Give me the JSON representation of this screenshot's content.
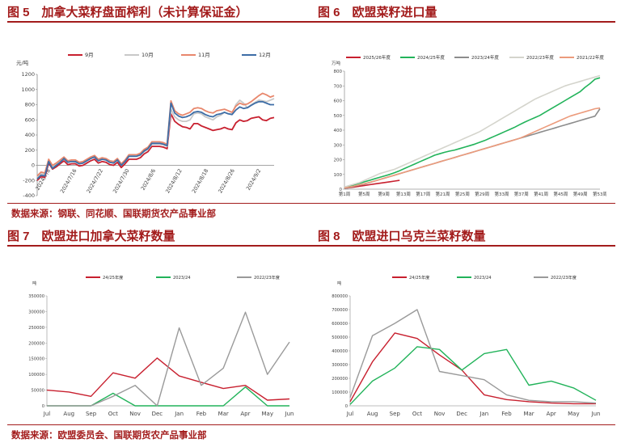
{
  "figures": {
    "fig5": {
      "title": "图 5　加拿大菜籽盘面榨利（未计算保证金）"
    },
    "fig6": {
      "title": "图 6　欧盟菜籽进口量"
    },
    "fig7": {
      "title": "图 7　欧盟进口加拿大菜籽数量"
    },
    "fig8": {
      "title": "图 8　欧盟进口乌克兰菜籽数量"
    }
  },
  "sources": {
    "top": "数据来源：钢联、同花顺、国联期货农产品事业部",
    "bottom": "数据来源：欧盟委员会、国联期货农产品事业部"
  },
  "chart_data": [
    {
      "id": "fig5",
      "type": "line",
      "ylabel": "元/吨",
      "ylim": [
        -400,
        1200
      ],
      "yticks": [
        "1200",
        "1000",
        "800",
        "600",
        "400",
        "200",
        "0",
        "-200",
        "-400"
      ],
      "ytick_values": [
        1200,
        1000,
        800,
        600,
        400,
        200,
        0,
        -200,
        -400
      ],
      "xticks": [
        "2024/7/8",
        "2024/7/16",
        "2024/7/22",
        "2024/7/30",
        "2024/8/6",
        "2024/8/12",
        "2024/8/18",
        "2024/8/26",
        "2024/9/2"
      ],
      "n_points": 63,
      "legend_position": "top",
      "series": [
        {
          "name": "9月",
          "color": "#c8202f",
          "values": [
            -200,
            -150,
            -160,
            30,
            -50,
            -20,
            20,
            60,
            10,
            20,
            20,
            -10,
            0,
            30,
            60,
            80,
            30,
            50,
            40,
            10,
            0,
            40,
            -30,
            20,
            80,
            80,
            80,
            100,
            150,
            180,
            250,
            250,
            250,
            240,
            220,
            680,
            580,
            540,
            510,
            500,
            480,
            550,
            550,
            520,
            500,
            480,
            460,
            470,
            480,
            500,
            480,
            470,
            560,
            600,
            580,
            590,
            620,
            630,
            640,
            600,
            590,
            620,
            630
          ]
        },
        {
          "name": "10月",
          "color": "#c8c8c8",
          "values": [
            -160,
            -110,
            -120,
            60,
            -20,
            10,
            50,
            80,
            40,
            50,
            40,
            20,
            30,
            60,
            90,
            110,
            60,
            80,
            70,
            40,
            30,
            70,
            0,
            50,
            120,
            120,
            120,
            130,
            180,
            210,
            280,
            280,
            280,
            270,
            250,
            740,
            640,
            600,
            580,
            580,
            600,
            680,
            690,
            680,
            640,
            620,
            600,
            640,
            660,
            700,
            680,
            680,
            800,
            860,
            820,
            760,
            800,
            830,
            860,
            850,
            840,
            860,
            880
          ]
        },
        {
          "name": "11月",
          "color": "#e8876c",
          "values": [
            -140,
            -90,
            -100,
            80,
            0,
            30,
            70,
            110,
            60,
            70,
            70,
            40,
            50,
            80,
            110,
            130,
            80,
            100,
            90,
            60,
            50,
            90,
            20,
            70,
            140,
            140,
            140,
            160,
            210,
            240,
            310,
            310,
            310,
            300,
            280,
            850,
            720,
            680,
            660,
            680,
            700,
            750,
            760,
            750,
            720,
            700,
            690,
            720,
            730,
            740,
            720,
            700,
            780,
            820,
            800,
            810,
            840,
            880,
            920,
            950,
            930,
            900,
            920
          ]
        },
        {
          "name": "12月",
          "color": "#3d6da6",
          "values": [
            -180,
            -130,
            -140,
            50,
            -40,
            0,
            40,
            90,
            40,
            50,
            50,
            20,
            30,
            60,
            90,
            110,
            60,
            80,
            70,
            40,
            30,
            70,
            0,
            50,
            120,
            120,
            120,
            140,
            190,
            220,
            290,
            290,
            290,
            280,
            260,
            820,
            690,
            650,
            630,
            640,
            660,
            700,
            710,
            700,
            670,
            650,
            640,
            670,
            680,
            700,
            680,
            670,
            730,
            770,
            750,
            760,
            790,
            820,
            840,
            840,
            820,
            800,
            800
          ]
        }
      ]
    },
    {
      "id": "fig6",
      "type": "line",
      "ylabel": "万吨",
      "ylim": [
        0,
        800
      ],
      "yticks": [
        "800",
        "700",
        "600",
        "500",
        "400",
        "300",
        "200",
        "100",
        "0"
      ],
      "ytick_values": [
        800,
        700,
        600,
        500,
        400,
        300,
        200,
        100,
        0
      ],
      "xticks": [
        "第1周",
        "第5周",
        "第9周",
        "第13周",
        "第17周",
        "第21周",
        "第25周",
        "第29周",
        "第33周",
        "第37周",
        "第41周",
        "第45周",
        "第49周",
        "第53周"
      ],
      "n_points": 52,
      "legend_position": "top",
      "series": [
        {
          "name": "2025/26年度",
          "color": "#c8202f",
          "values": [
            5,
            10,
            15,
            20,
            25,
            30,
            35,
            40,
            45,
            50,
            55,
            60
          ]
        },
        {
          "name": "2024/25年度",
          "color": "#22b35a",
          "values": [
            10,
            20,
            30,
            40,
            50,
            60,
            70,
            80,
            90,
            100,
            112,
            125,
            140,
            155,
            170,
            185,
            200,
            215,
            230,
            240,
            250,
            258,
            265,
            275,
            285,
            295,
            305,
            318,
            330,
            345,
            360,
            375,
            390,
            405,
            420,
            438,
            455,
            470,
            485,
            500,
            520,
            540,
            560,
            580,
            600,
            620,
            640,
            660,
            690,
            715,
            745,
            755
          ]
        },
        {
          "name": "2023/24年度",
          "color": "#8c8c8c",
          "values": [
            5,
            12,
            20,
            28,
            35,
            45,
            55,
            65,
            75,
            85,
            95,
            105,
            115,
            125,
            135,
            145,
            155,
            165,
            175,
            185,
            195,
            205,
            215,
            225,
            235,
            245,
            255,
            265,
            275,
            285,
            295,
            305,
            315,
            325,
            335,
            345,
            355,
            365,
            375,
            385,
            395,
            405,
            415,
            425,
            435,
            445,
            455,
            465,
            475,
            485,
            495,
            545
          ]
        },
        {
          "name": "2022/23年度",
          "color": "#d4d4cc",
          "values": [
            15,
            25,
            35,
            45,
            60,
            75,
            90,
            105,
            115,
            125,
            135,
            150,
            165,
            180,
            195,
            210,
            225,
            240,
            255,
            270,
            285,
            300,
            315,
            330,
            345,
            360,
            375,
            390,
            410,
            430,
            450,
            470,
            490,
            510,
            530,
            550,
            570,
            590,
            610,
            625,
            640,
            655,
            670,
            685,
            700,
            710,
            720,
            730,
            740,
            750,
            760,
            770
          ]
        },
        {
          "name": "2021/22年度",
          "color": "#ec9b7c",
          "values": [
            8,
            15,
            22,
            30,
            38,
            46,
            55,
            65,
            75,
            85,
            95,
            105,
            115,
            125,
            135,
            145,
            155,
            165,
            175,
            185,
            195,
            205,
            215,
            225,
            235,
            245,
            255,
            265,
            275,
            285,
            295,
            305,
            315,
            325,
            335,
            345,
            360,
            375,
            390,
            405,
            420,
            435,
            450,
            465,
            480,
            495,
            505,
            515,
            525,
            535,
            545,
            550
          ]
        }
      ]
    },
    {
      "id": "fig7",
      "type": "line",
      "ylabel": "吨",
      "ylim": [
        0,
        350000
      ],
      "yticks": [
        "350000",
        "300000",
        "250000",
        "200000",
        "150000",
        "100000",
        "50000",
        "0"
      ],
      "ytick_values": [
        350000,
        300000,
        250000,
        200000,
        150000,
        100000,
        50000,
        0
      ],
      "xticks": [
        "Jul",
        "Aug",
        "Sep",
        "Oct",
        "Nov",
        "Dec",
        "Jan",
        "Feb",
        "Mar",
        "Apr",
        "May",
        "Jun"
      ],
      "legend_position": "top",
      "series": [
        {
          "name": "24/25年度",
          "color": "#c8202f",
          "values": [
            50000,
            44000,
            30000,
            105000,
            88000,
            152000,
            95000,
            75000,
            55000,
            65000,
            18000,
            22000
          ]
        },
        {
          "name": "2023/24",
          "color": "#22b35a",
          "values": [
            0,
            0,
            0,
            40000,
            0,
            0,
            0,
            0,
            0,
            60000,
            0,
            0
          ]
        },
        {
          "name": "2022/23年度",
          "color": "#9a9a9a",
          "values": [
            0,
            0,
            0,
            30000,
            65000,
            0,
            248000,
            65000,
            120000,
            298000,
            100000,
            203000
          ]
        }
      ]
    },
    {
      "id": "fig8",
      "type": "line",
      "ylabel": "吨",
      "ylim": [
        0,
        800000
      ],
      "yticks": [
        "800000",
        "700000",
        "600000",
        "500000",
        "400000",
        "300000",
        "200000",
        "100000",
        "0"
      ],
      "ytick_values": [
        800000,
        700000,
        600000,
        500000,
        400000,
        300000,
        200000,
        100000,
        0
      ],
      "xticks": [
        "Jul",
        "Aug",
        "Sep",
        "Oct",
        "Nov",
        "Dec",
        "Jan",
        "Feb",
        "Mar",
        "Apr",
        "May",
        "Jun"
      ],
      "legend_position": "top",
      "series": [
        {
          "name": "24/25年度",
          "color": "#c8202f",
          "values": [
            30000,
            320000,
            530000,
            490000,
            370000,
            260000,
            80000,
            45000,
            30000,
            20000,
            15000,
            15000
          ]
        },
        {
          "name": "2023/24",
          "color": "#22b35a",
          "values": [
            10000,
            180000,
            275000,
            430000,
            410000,
            260000,
            380000,
            410000,
            150000,
            180000,
            130000,
            40000
          ]
        },
        {
          "name": "2022/23年度",
          "color": "#9a9a9a",
          "values": [
            60000,
            510000,
            600000,
            700000,
            250000,
            220000,
            190000,
            80000,
            40000,
            30000,
            30000,
            20000
          ]
        }
      ]
    }
  ]
}
